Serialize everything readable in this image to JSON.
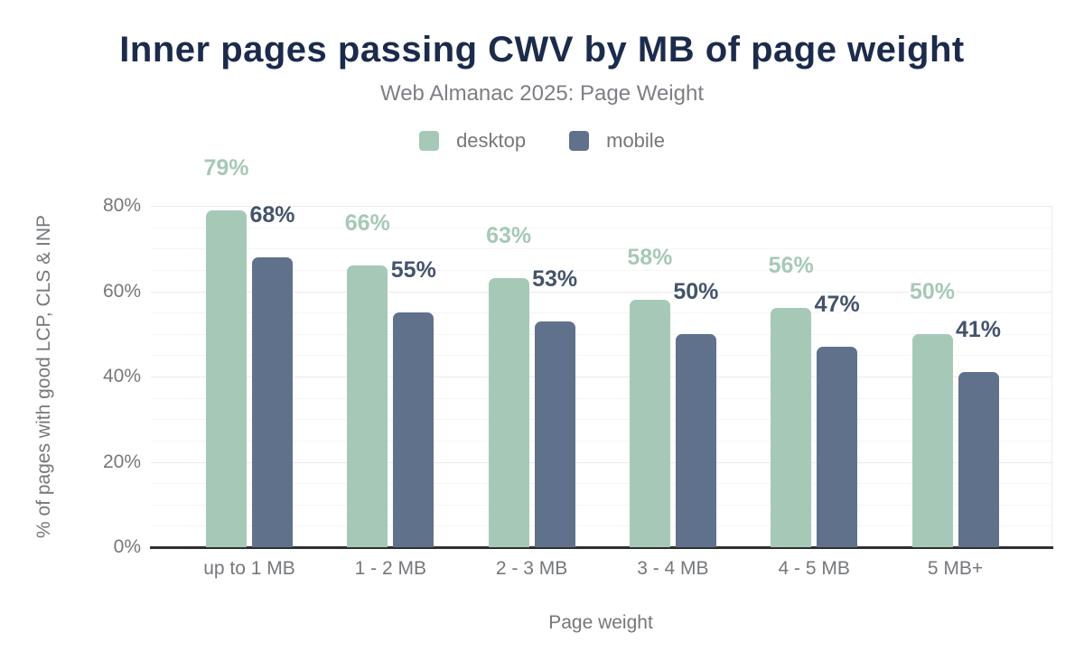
{
  "chart_data": {
    "type": "bar",
    "title": "Inner pages passing CWV by MB of page weight",
    "subtitle": "Web Almanac 2025: Page Weight",
    "categories": [
      "up to 1 MB",
      "1 - 2 MB",
      "2 - 3 MB",
      "3 - 4 MB",
      "4 - 5 MB",
      "5 MB+"
    ],
    "series": [
      {
        "name": "desktop",
        "color": "#a6c9b7",
        "label_color": "#a6c9b7",
        "values": [
          79,
          66,
          63,
          58,
          56,
          50
        ]
      },
      {
        "name": "mobile",
        "color": "#60718c",
        "label_color": "#44536d",
        "values": [
          68,
          55,
          53,
          50,
          47,
          41
        ]
      }
    ],
    "xlabel": "Page weight",
    "ylabel": "% of pages with good LCP, CLS & INP",
    "ylim": [
      0,
      80
    ],
    "yticks": [
      0,
      20,
      40,
      60,
      80
    ],
    "ytick_suffix": "%",
    "value_suffix": "%",
    "grid": "horizontal minor lines every 5%, major every 20%",
    "legend_position": "top center"
  },
  "colors": {
    "title": "#1b2b4d",
    "text_gray": "#75787b",
    "axis_line": "#2f2f2f",
    "grid_minor": "#f5f5f5",
    "grid_major": "#e9e9e9",
    "background": "#ffffff"
  }
}
